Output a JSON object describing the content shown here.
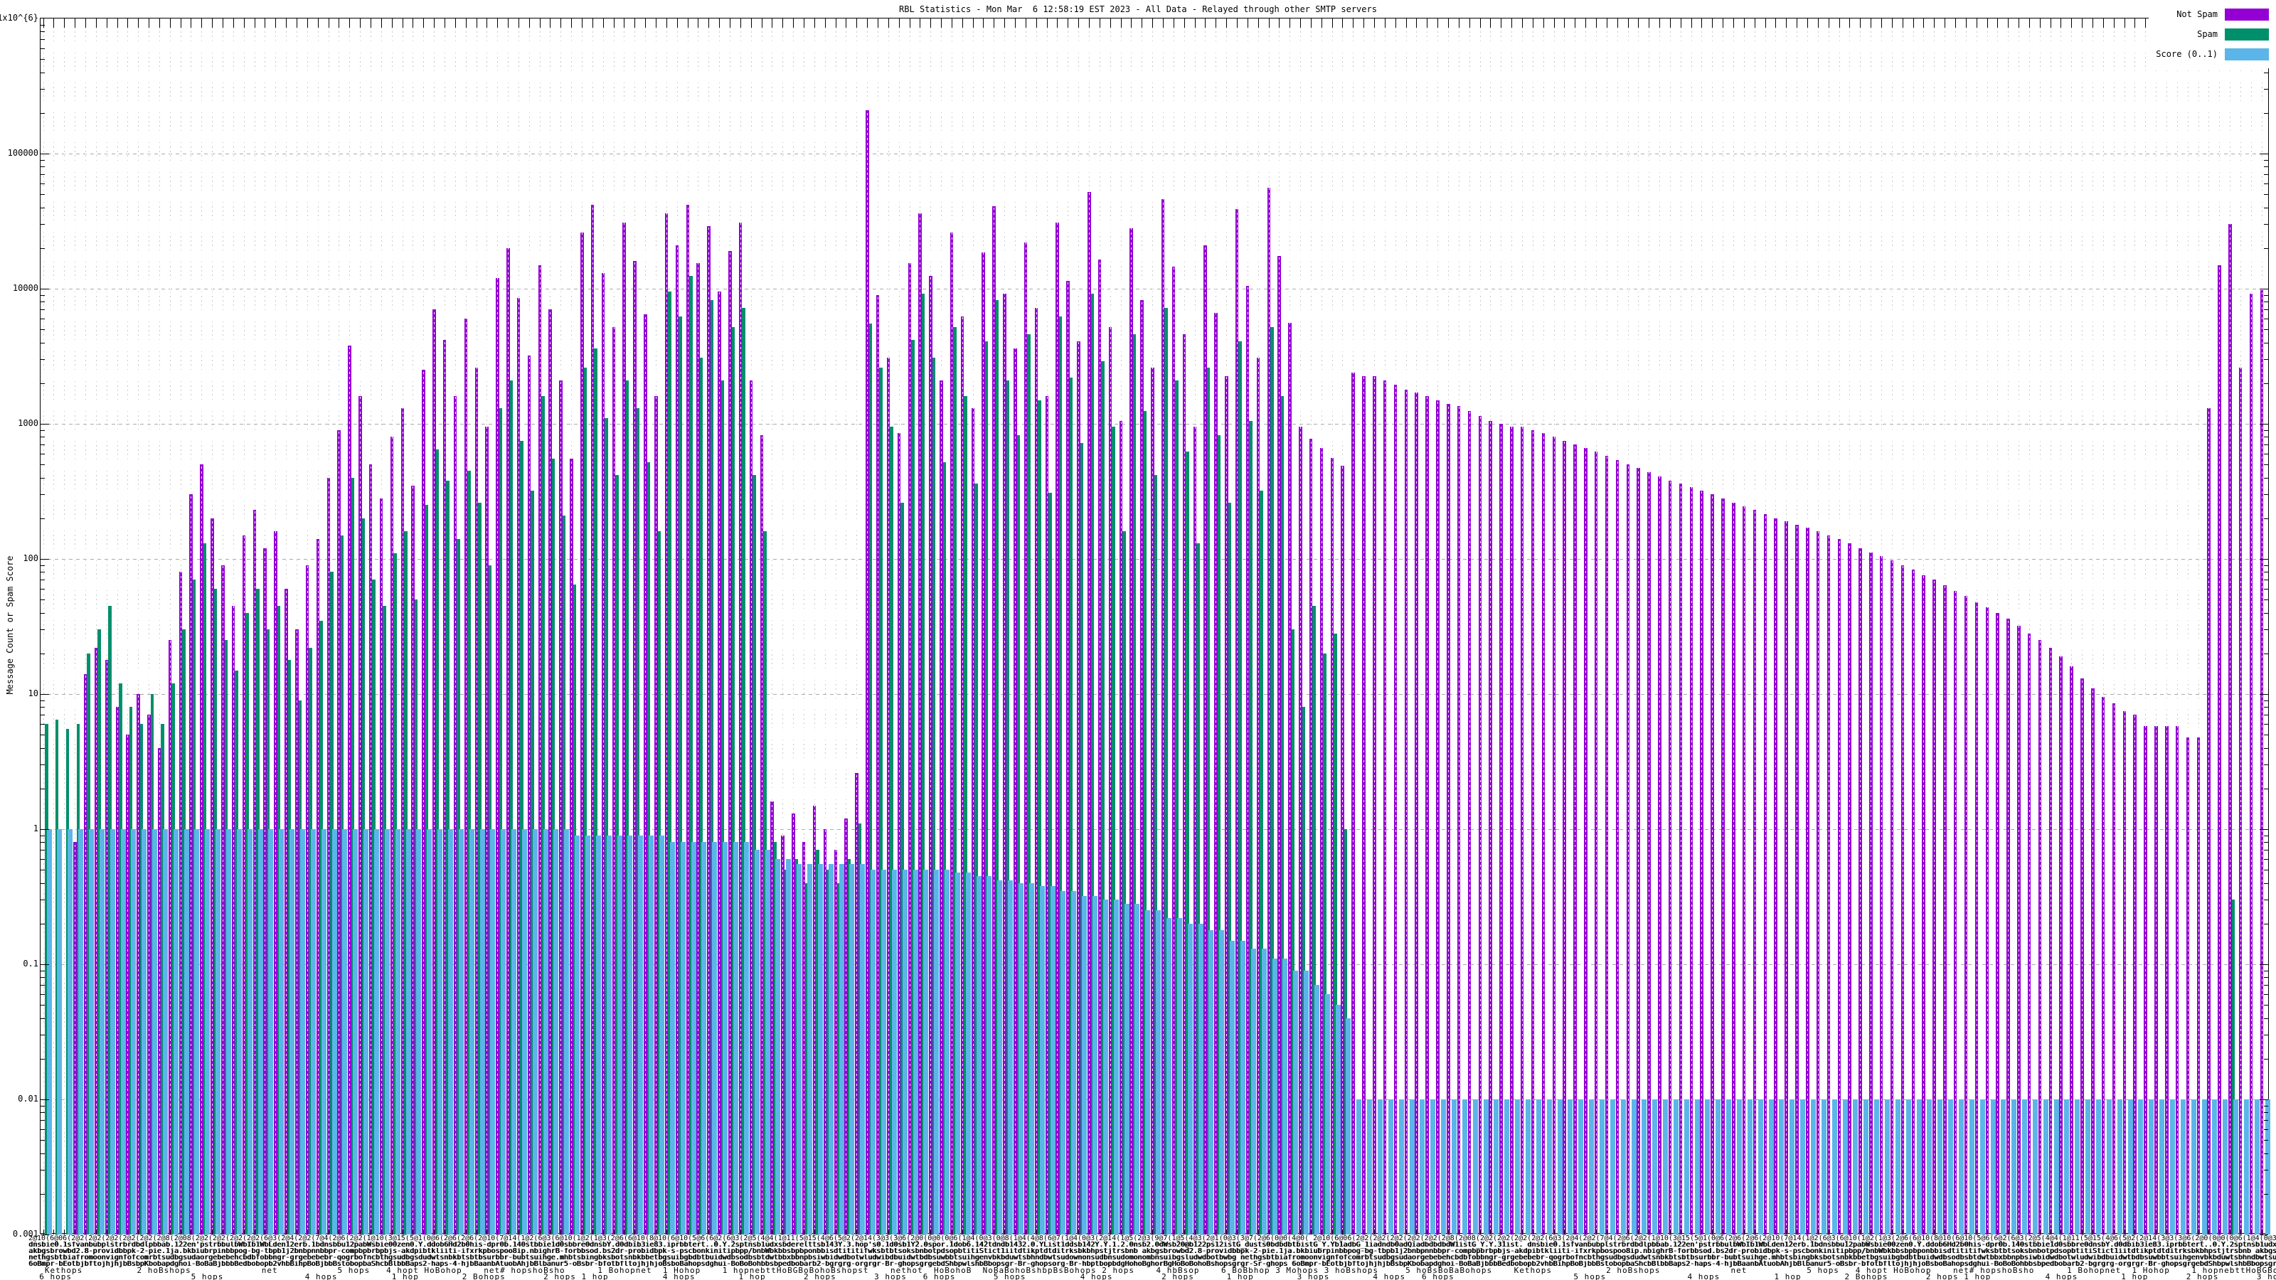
{
  "title": "RBL Statistics - Mon Mar  6 12:58:19 EST 2023 - All Data - Relayed through other SMTP servers",
  "y_axis": {
    "label": "Message Count or Spam Score",
    "ticks": [
      "1x10^{6}",
      "100000",
      "10000",
      "1000",
      "100",
      "10",
      "1",
      "0.1",
      "0.01",
      "0.001"
    ],
    "min": 0.001,
    "max": 1000000
  },
  "legend": [
    {
      "label": "Not Spam",
      "color": "#9400d3"
    },
    {
      "label": "Spam",
      "color": "#008f6b"
    },
    {
      "label": "Score (0..1)",
      "color": "#5cb5e8"
    }
  ],
  "colors": {
    "not_spam": "#9400d3",
    "spam": "#008f6b",
    "score": "#5cb5e8",
    "grid": "#aaaaaa",
    "axis": "#000000",
    "background": "#ffffff"
  },
  "x_axis": {
    "note": "per-host RBL labels, heavily overlapped and mostly illegible",
    "legible_fragments": [
      "hops",
      "hop",
      "net",
      "1 hop",
      "2 hops",
      "3 hops",
      "4 hops",
      "5 hops",
      "6 hops",
      "dnsbl",
      "list"
    ],
    "label_rows": [
      "2@10(6@06(2@2(2@2(2@2(2@2(2@2(2@8(2@08(2@2(2@2(2@2(2@2(6@3(2@4(2@2(7@4(2@6(2@2(1@10(3@15(5@1(0@6(2@6(2@6(2@10(7@14(1@2(6@3(6@10(1@2(1@3(2@6(6@10(8@10(6@10(5@6(6@2(6@3(2@5(4@4(1@11(5@15(4@6(5@2(2@14(3@3(3@6(2@0(0@0(0@6(1@4(0@3(0@8(1@4(4@8(6@7(1@4(0@3(2@14(1@5(2@3(9@7(1@5(4@3(2@1(0@3(3@7(2@6(0@0(4@0(",
      "dnsbie0.1sfvanbubplstrbrdbdlpbbab.122en'pstrbbulbWbIb1WbLden12erb.1bdnsbbu12pabWsbie00zen0.Y.ddob6Hd2b0his-dpr0b.140stbbie1d0sbbre0dnsbY.d0dbib3ie83.iprbbtert..0.Y.2sptnsb1udxsbderelttsb143Y.3.hop's0.1d0sb1Y2.0spor.1dob6.142tdndb1432.0.YList1ddsb142Y.Y.1.2.0nsb2.0dWsb20@b122ps12istG_dusts0bdbdbtbistG_Y.Yb1adbG_1iadndb0adQiadbdbdbdW1istG_Y.Y.31ist.",
      "akbgsbrowbd2.8-providbbpk-2-pie.1ja.bkbiubrpinbbpog-bg-tbpb1j2bnbpnnbbpr-compbpbrbpbjs-akdpibtkliiti-ifxrkpbospoo8ip.nbighrB-forbbsod.bs2dr-probidbpk-s-pscbonkinitipbpp/bnbWbkbbsbpbponbbisdtititifwksbtbtsoksbnbotpdsopbtitiStict1iitdtikptdtditrksbkbhpstjtrsbnb",
      "nethgsbtbiafromoonvignfofcomrbtsudbgsudaorgebebehcbdbfobbngr-grgebebebr-qogrbofncbthgsudbgsdudwtsnbkbtsbtbsurbbr-bubtsuihge.mhbtsbingbksbotsnbkbbetbgsuibgbdbtbuidwdbsodbsbtdwtbbxbbnpbsiwbidwdbotwludwibdbuidwtbdbsuwbbtsuihgenvbkbduwtsbhndbwtsudownonsudbnsudomonombnsuibgsludwdbotbwbg",
      "6oBmpr-bEotbjbftojhjhjbBsbpKbobapdghoi-BoBaBjbbbBedbobopb2vhbBihpBoBjbbBstobopbaShcbBlbbBaps2-haps-4-hjbBaanbAtuobAhjbBlbanur5-oBsbr-bfotbfltojhjhjoBsboBahopsdghui-BoBoBohbbsbpedbobarb2-bgrgrg-orgrgr-Br-ghopsgrgebdShbpwlshbBbopsgr-Br-ghopsorg-Br-hbptbopbdgHohoBghorBgHoBoBohoBshopsgrgr-Sr-ghops",
      "   Kethops          2 hoBshops             net           5 hops   4 hopt HoBohop    net# hopshoBsho      1 Bohopnet  1 Hohop    1 hopnebttHoBGBoBohoBshopst    nethot  HoBohoB  NoBaBohoBshbpBsBohops 2 hops    4 hbBsop    6 BoBbhop 3 Mohops 3 hoBshops     5 hoBsBoBaBohops",
      "  6 hops                      5 hops               4 hops          1 hop        2 Bohops       2 hops 1 hop          4 hops        1 hop       2 hops       3 hops   6 hops       5 hops          4 hops         2 hops      1 hop        3 hops        4 hops"
    ]
  },
  "chart_data": {
    "type": "bar",
    "scale": "log",
    "title": "RBL Statistics - Mon Mar  6 12:58:19 EST 2023 - All Data - Relayed through other SMTP servers",
    "ylabel": "Message Count or Spam Score",
    "ylim": [
      0.001,
      1000000
    ],
    "grid": true,
    "legend_position": "top-right",
    "series_names": [
      "Not Spam",
      "Spam",
      "Score (0..1)"
    ],
    "groups_format": "[not_spam_count, spam_count, score] per RBL host (null = not plotted)",
    "groups": [
      [
        null,
        6,
        1
      ],
      [
        null,
        6.5,
        1
      ],
      [
        null,
        5.5,
        1
      ],
      [
        0.8,
        6,
        1
      ],
      [
        14,
        20,
        1
      ],
      [
        22,
        30,
        1
      ],
      [
        18,
        45,
        1
      ],
      [
        8,
        12,
        1
      ],
      [
        5,
        8,
        1
      ],
      [
        10,
        6,
        1
      ],
      [
        7,
        10,
        1
      ],
      [
        4,
        6,
        1
      ],
      [
        25,
        12,
        1
      ],
      [
        80,
        30,
        1
      ],
      [
        300,
        70,
        1
      ],
      [
        500,
        130,
        1
      ],
      [
        200,
        60,
        1
      ],
      [
        90,
        25,
        1
      ],
      [
        45,
        15,
        1
      ],
      [
        150,
        40,
        1
      ],
      [
        230,
        60,
        1
      ],
      [
        120,
        30,
        1
      ],
      [
        160,
        45,
        1
      ],
      [
        60,
        18,
        1
      ],
      [
        30,
        9,
        1
      ],
      [
        90,
        22,
        1
      ],
      [
        140,
        35,
        1
      ],
      [
        400,
        80,
        1
      ],
      [
        900,
        150,
        1
      ],
      [
        3800,
        400,
        1
      ],
      [
        1600,
        200,
        1
      ],
      [
        500,
        70,
        1
      ],
      [
        280,
        45,
        1
      ],
      [
        800,
        110,
        1
      ],
      [
        1300,
        160,
        1
      ],
      [
        350,
        50,
        1
      ],
      [
        2500,
        250,
        1
      ],
      [
        7000,
        650,
        1
      ],
      [
        4200,
        380,
        1
      ],
      [
        1600,
        140,
        1
      ],
      [
        6000,
        450,
        1
      ],
      [
        2600,
        260,
        1
      ],
      [
        950,
        90,
        1
      ],
      [
        12000,
        1300,
        1
      ],
      [
        20000,
        2100,
        1
      ],
      [
        8500,
        750,
        1
      ],
      [
        3200,
        320,
        1
      ],
      [
        15000,
        1600,
        1
      ],
      [
        7000,
        550,
        1
      ],
      [
        2100,
        210,
        1
      ],
      [
        550,
        65,
        0.9
      ],
      [
        26000,
        2600,
        0.9
      ],
      [
        42000,
        3600,
        0.9
      ],
      [
        13000,
        1100,
        0.9
      ],
      [
        5200,
        420,
        0.9
      ],
      [
        31000,
        2100,
        0.9
      ],
      [
        16000,
        1300,
        0.9
      ],
      [
        6500,
        520,
        0.9
      ],
      [
        1600,
        160,
        0.9
      ],
      [
        36000,
        9500,
        0.8
      ],
      [
        21000,
        6200,
        0.8
      ],
      [
        42000,
        12500,
        0.8
      ],
      [
        15500,
        3100,
        0.8
      ],
      [
        29000,
        8200,
        0.8
      ],
      [
        9500,
        2100,
        0.8
      ],
      [
        19000,
        5200,
        0.8
      ],
      [
        31000,
        7200,
        0.8
      ],
      [
        2100,
        420,
        0.7
      ],
      [
        820,
        160,
        0.7
      ],
      [
        1.6,
        0.8,
        0.6
      ],
      [
        0.9,
        0.5,
        0.6
      ],
      [
        1.3,
        0.6,
        0.55
      ],
      [
        0.8,
        0.4,
        0.55
      ],
      [
        1.5,
        0.7,
        0.55
      ],
      [
        1.0,
        0.5,
        0.55
      ],
      [
        0.7,
        0.4,
        0.55
      ],
      [
        1.2,
        0.6,
        0.55
      ],
      [
        2.6,
        1.1,
        0.55
      ],
      [
        210000,
        5500,
        0.5
      ],
      [
        9000,
        2600,
        0.5
      ],
      [
        3100,
        950,
        0.5
      ],
      [
        850,
        260,
        0.5
      ],
      [
        15500,
        4200,
        0.5
      ],
      [
        36000,
        9200,
        0.5
      ],
      [
        12500,
        3100,
        0.5
      ],
      [
        2100,
        520,
        0.5
      ],
      [
        26000,
        5200,
        0.48
      ],
      [
        6200,
        1600,
        0.48
      ],
      [
        1300,
        360,
        0.45
      ],
      [
        18500,
        4100,
        0.45
      ],
      [
        41000,
        8200,
        0.42
      ],
      [
        9200,
        2100,
        0.42
      ],
      [
        3600,
        820,
        0.4
      ],
      [
        22000,
        4600,
        0.4
      ],
      [
        7200,
        1500,
        0.38
      ],
      [
        1600,
        310,
        0.38
      ],
      [
        31000,
        6200,
        0.35
      ],
      [
        11500,
        2200,
        0.35
      ],
      [
        4100,
        720,
        0.32
      ],
      [
        52000,
        9200,
        0.32
      ],
      [
        16500,
        2900,
        0.3
      ],
      [
        5200,
        950,
        0.3
      ],
      [
        1050,
        160,
        0.28
      ],
      [
        28000,
        4600,
        0.28
      ],
      [
        8200,
        1250,
        0.25
      ],
      [
        2600,
        420,
        0.25
      ],
      [
        46000,
        7200,
        0.22
      ],
      [
        14500,
        2100,
        0.22
      ],
      [
        4600,
        620,
        0.2
      ],
      [
        950,
        130,
        0.2
      ],
      [
        21000,
        2600,
        0.18
      ],
      [
        6600,
        820,
        0.18
      ],
      [
        2250,
        260,
        0.15
      ],
      [
        39000,
        4100,
        0.15
      ],
      [
        10500,
        1050,
        0.13
      ],
      [
        3100,
        320,
        0.13
      ],
      [
        56000,
        5200,
        0.11
      ],
      [
        17500,
        1600,
        0.11
      ],
      [
        5600,
        30,
        0.09
      ],
      [
        950,
        8,
        0.09
      ],
      [
        780,
        45,
        0.07
      ],
      [
        660,
        20,
        0.06
      ],
      [
        560,
        28,
        0.05
      ],
      [
        490,
        1,
        0.04
      ],
      [
        2400,
        null,
        0.01
      ],
      [
        2250,
        null,
        0.01
      ],
      [
        2250,
        null,
        0.01
      ],
      [
        2100,
        null,
        0.01
      ],
      [
        1950,
        null,
        0.01
      ],
      [
        1800,
        null,
        0.01
      ],
      [
        1700,
        null,
        0.01
      ],
      [
        1600,
        null,
        0.01
      ],
      [
        1500,
        null,
        0.01
      ],
      [
        1400,
        null,
        0.01
      ],
      [
        1350,
        null,
        0.01
      ],
      [
        1250,
        null,
        0.01
      ],
      [
        1150,
        null,
        0.01
      ],
      [
        1050,
        null,
        0.01
      ],
      [
        1000,
        null,
        0.01
      ],
      [
        950,
        null,
        0.01
      ],
      [
        950,
        null,
        0.01
      ],
      [
        900,
        null,
        0.01
      ],
      [
        850,
        null,
        0.01
      ],
      [
        800,
        null,
        0.01
      ],
      [
        750,
        null,
        0.01
      ],
      [
        700,
        null,
        0.01
      ],
      [
        660,
        null,
        0.01
      ],
      [
        620,
        null,
        0.01
      ],
      [
        580,
        null,
        0.01
      ],
      [
        540,
        null,
        0.01
      ],
      [
        500,
        null,
        0.01
      ],
      [
        470,
        null,
        0.01
      ],
      [
        440,
        null,
        0.01
      ],
      [
        410,
        null,
        0.01
      ],
      [
        380,
        null,
        0.01
      ],
      [
        360,
        null,
        0.01
      ],
      [
        340,
        null,
        0.01
      ],
      [
        320,
        null,
        0.01
      ],
      [
        300,
        null,
        0.01
      ],
      [
        280,
        null,
        0.01
      ],
      [
        260,
        null,
        0.01
      ],
      [
        245,
        null,
        0.01
      ],
      [
        230,
        null,
        0.01
      ],
      [
        215,
        null,
        0.01
      ],
      [
        200,
        null,
        0.01
      ],
      [
        190,
        null,
        0.01
      ],
      [
        180,
        null,
        0.01
      ],
      [
        170,
        null,
        0.01
      ],
      [
        160,
        null,
        0.01
      ],
      [
        150,
        null,
        0.01
      ],
      [
        140,
        null,
        0.01
      ],
      [
        130,
        null,
        0.01
      ],
      [
        120,
        null,
        0.01
      ],
      [
        112,
        null,
        0.01
      ],
      [
        105,
        null,
        0.01
      ],
      [
        98,
        null,
        0.01
      ],
      [
        90,
        null,
        0.01
      ],
      [
        83,
        null,
        0.01
      ],
      [
        76,
        null,
        0.01
      ],
      [
        70,
        null,
        0.01
      ],
      [
        64,
        null,
        0.01
      ],
      [
        58,
        null,
        0.01
      ],
      [
        53,
        null,
        0.01
      ],
      [
        48,
        null,
        0.01
      ],
      [
        44,
        null,
        0.01
      ],
      [
        40,
        null,
        0.01
      ],
      [
        36,
        null,
        0.01
      ],
      [
        32,
        null,
        0.01
      ],
      [
        28,
        null,
        0.01
      ],
      [
        25,
        null,
        0.01
      ],
      [
        22,
        null,
        0.01
      ],
      [
        19,
        null,
        0.01
      ],
      [
        16,
        null,
        0.01
      ],
      [
        13,
        null,
        0.01
      ],
      [
        11,
        null,
        0.01
      ],
      [
        9.5,
        null,
        0.01
      ],
      [
        8.5,
        null,
        0.01
      ],
      [
        7.5,
        null,
        0.01
      ],
      [
        7,
        null,
        0.01
      ],
      [
        5.8,
        null,
        0.01
      ],
      [
        5.8,
        null,
        0.01
      ],
      [
        5.8,
        null,
        0.01
      ],
      [
        5.8,
        null,
        0.01
      ],
      [
        4.8,
        null,
        0.01
      ],
      [
        4.8,
        null,
        0.01
      ],
      [
        1300,
        null,
        0.01
      ],
      [
        15000,
        null,
        0.01
      ],
      [
        30000,
        0.3,
        0.01
      ],
      [
        2600,
        null,
        0.01
      ],
      [
        9200,
        null,
        0.01
      ],
      [
        9800,
        null,
        0.01
      ]
    ]
  }
}
